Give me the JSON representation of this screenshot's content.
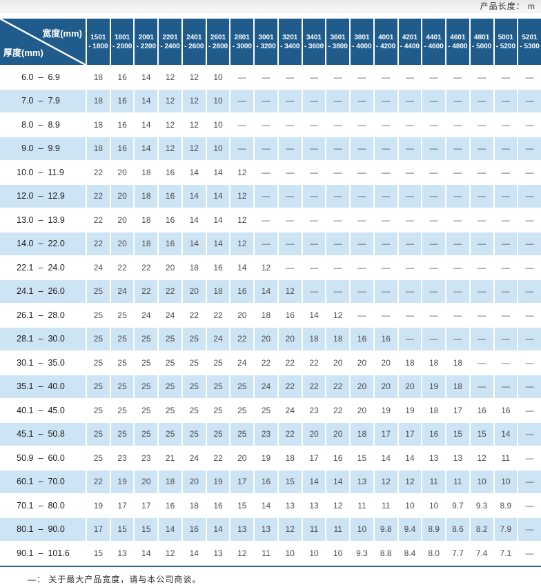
{
  "top_note": "产品长度： m",
  "header": {
    "width_label": "宽度(mm)",
    "thickness_label": "厚度(mm)",
    "columns": [
      {
        "line1": "1501",
        "line2": "- 1800"
      },
      {
        "line1": "1801",
        "line2": "- 2000"
      },
      {
        "line1": "2001",
        "line2": "- 2200"
      },
      {
        "line1": "2201",
        "line2": "- 2400"
      },
      {
        "line1": "2401",
        "line2": "- 2600"
      },
      {
        "line1": "2601",
        "line2": "- 2800"
      },
      {
        "line1": "2801",
        "line2": "- 3000"
      },
      {
        "line1": "3001",
        "line2": "- 3200"
      },
      {
        "line1": "3201",
        "line2": "- 3400"
      },
      {
        "line1": "3401",
        "line2": "- 3600"
      },
      {
        "line1": "3601",
        "line2": "- 3800"
      },
      {
        "line1": "3801",
        "line2": "- 4000"
      },
      {
        "line1": "4001",
        "line2": "- 4200"
      },
      {
        "line1": "4201",
        "line2": "- 4400"
      },
      {
        "line1": "4401",
        "line2": "- 4600"
      },
      {
        "line1": "4601",
        "line2": "- 4800"
      },
      {
        "line1": "4801",
        "line2": "- 5000"
      },
      {
        "line1": "5001",
        "line2": "- 5200"
      },
      {
        "line1": "5201",
        "line2": "- 5300"
      }
    ]
  },
  "range_separator": "–",
  "rows": [
    {
      "min": "6.0",
      "max": "6.9",
      "values": [
        "18",
        "16",
        "14",
        "12",
        "12",
        "10",
        "—",
        "—",
        "—",
        "—",
        "—",
        "—",
        "—",
        "—",
        "—",
        "—",
        "—",
        "—",
        "—"
      ]
    },
    {
      "min": "7.0",
      "max": "7.9",
      "values": [
        "18",
        "16",
        "14",
        "12",
        "12",
        "10",
        "—",
        "—",
        "—",
        "—",
        "—",
        "—",
        "—",
        "—",
        "—",
        "—",
        "—",
        "—",
        "—"
      ]
    },
    {
      "min": "8.0",
      "max": "8.9",
      "values": [
        "18",
        "16",
        "14",
        "12",
        "12",
        "10",
        "—",
        "—",
        "—",
        "—",
        "—",
        "—",
        "—",
        "—",
        "—",
        "—",
        "—",
        "—",
        "—"
      ]
    },
    {
      "min": "9.0",
      "max": "9.9",
      "values": [
        "18",
        "16",
        "14",
        "12",
        "12",
        "10",
        "—",
        "—",
        "—",
        "—",
        "—",
        "—",
        "—",
        "—",
        "—",
        "—",
        "—",
        "—",
        "—"
      ]
    },
    {
      "min": "10.0",
      "max": "11.9",
      "values": [
        "22",
        "20",
        "18",
        "16",
        "14",
        "14",
        "12",
        "—",
        "—",
        "—",
        "—",
        "—",
        "—",
        "—",
        "—",
        "—",
        "—",
        "—",
        "—"
      ]
    },
    {
      "min": "12.0",
      "max": "12.9",
      "values": [
        "22",
        "20",
        "18",
        "16",
        "14",
        "14",
        "12",
        "—",
        "—",
        "—",
        "—",
        "—",
        "—",
        "—",
        "—",
        "—",
        "—",
        "—",
        "—"
      ]
    },
    {
      "min": "13.0",
      "max": "13.9",
      "values": [
        "22",
        "20",
        "18",
        "16",
        "14",
        "14",
        "12",
        "—",
        "—",
        "—",
        "—",
        "—",
        "—",
        "—",
        "—",
        "—",
        "—",
        "—",
        "—"
      ]
    },
    {
      "min": "14.0",
      "max": "22.0",
      "values": [
        "22",
        "20",
        "18",
        "16",
        "14",
        "14",
        "12",
        "—",
        "—",
        "—",
        "—",
        "—",
        "—",
        "—",
        "—",
        "—",
        "—",
        "—",
        "—"
      ]
    },
    {
      "min": "22.1",
      "max": "24.0",
      "values": [
        "24",
        "22",
        "22",
        "20",
        "18",
        "16",
        "14",
        "12",
        "—",
        "—",
        "—",
        "—",
        "—",
        "—",
        "—",
        "—",
        "—",
        "—",
        "—"
      ]
    },
    {
      "min": "24.1",
      "max": "26.0",
      "values": [
        "25",
        "24",
        "22",
        "22",
        "20",
        "18",
        "16",
        "14",
        "12",
        "—",
        "—",
        "—",
        "—",
        "—",
        "—",
        "—",
        "—",
        "—",
        "—"
      ]
    },
    {
      "min": "26.1",
      "max": "28.0",
      "values": [
        "25",
        "25",
        "24",
        "24",
        "22",
        "22",
        "20",
        "18",
        "16",
        "14",
        "12",
        "—",
        "—",
        "—",
        "—",
        "—",
        "—",
        "—",
        "—"
      ]
    },
    {
      "min": "28.1",
      "max": "30.0",
      "values": [
        "25",
        "25",
        "25",
        "25",
        "25",
        "24",
        "22",
        "20",
        "20",
        "18",
        "18",
        "16",
        "16",
        "—",
        "—",
        "—",
        "—",
        "—",
        "—"
      ]
    },
    {
      "min": "30.1",
      "max": "35.0",
      "values": [
        "25",
        "25",
        "25",
        "25",
        "25",
        "25",
        "24",
        "22",
        "22",
        "22",
        "20",
        "20",
        "20",
        "18",
        "18",
        "18",
        "—",
        "—",
        "—"
      ]
    },
    {
      "min": "35.1",
      "max": "40.0",
      "values": [
        "25",
        "25",
        "25",
        "25",
        "25",
        "25",
        "25",
        "24",
        "22",
        "22",
        "22",
        "20",
        "20",
        "20",
        "19",
        "18",
        "—",
        "—",
        "—"
      ]
    },
    {
      "min": "40.1",
      "max": "45.0",
      "values": [
        "25",
        "25",
        "25",
        "25",
        "25",
        "25",
        "25",
        "25",
        "24",
        "23",
        "22",
        "20",
        "19",
        "19",
        "18",
        "17",
        "16",
        "16",
        "—"
      ]
    },
    {
      "min": "45.1",
      "max": "50.8",
      "values": [
        "25",
        "25",
        "25",
        "25",
        "25",
        "25",
        "25",
        "23",
        "22",
        "20",
        "20",
        "18",
        "17",
        "17",
        "16",
        "15",
        "15",
        "14",
        "—"
      ]
    },
    {
      "min": "50.9",
      "max": "60.0",
      "values": [
        "25",
        "23",
        "23",
        "21",
        "24",
        "22",
        "20",
        "19",
        "18",
        "17",
        "16",
        "15",
        "14",
        "14",
        "13",
        "13",
        "12",
        "11",
        "—"
      ]
    },
    {
      "min": "60.1",
      "max": "70.0",
      "values": [
        "22",
        "19",
        "20",
        "18",
        "20",
        "19",
        "17",
        "16",
        "15",
        "14",
        "14",
        "13",
        "12",
        "12",
        "11",
        "11",
        "10",
        "10",
        "—"
      ]
    },
    {
      "min": "70.1",
      "max": "80.0",
      "values": [
        "19",
        "17",
        "17",
        "16",
        "18",
        "16",
        "15",
        "14",
        "13",
        "13",
        "12",
        "11",
        "11",
        "10",
        "10",
        "9.7",
        "9.3",
        "8.9",
        "—"
      ]
    },
    {
      "min": "80.1",
      "max": "90.0",
      "values": [
        "17",
        "15",
        "15",
        "14",
        "16",
        "14",
        "13",
        "13",
        "12",
        "11",
        "11",
        "10",
        "9.8",
        "9.4",
        "8.9",
        "8.6",
        "8.2",
        "7.9",
        "—"
      ]
    },
    {
      "min": "90.1",
      "max": "101.6",
      "values": [
        "15",
        "13",
        "14",
        "12",
        "14",
        "13",
        "12",
        "11",
        "10",
        "10",
        "10",
        "9.3",
        "8.8",
        "8.4",
        "8.0",
        "7.7",
        "7.4",
        "7.1",
        "—"
      ]
    }
  ],
  "footnote": "—： 关于最大产品宽度，请与本公司商谈。",
  "colors": {
    "header_blue": "#1f5c8b",
    "row_blue": "#cde4f5",
    "rule_blue": "#25618f"
  }
}
